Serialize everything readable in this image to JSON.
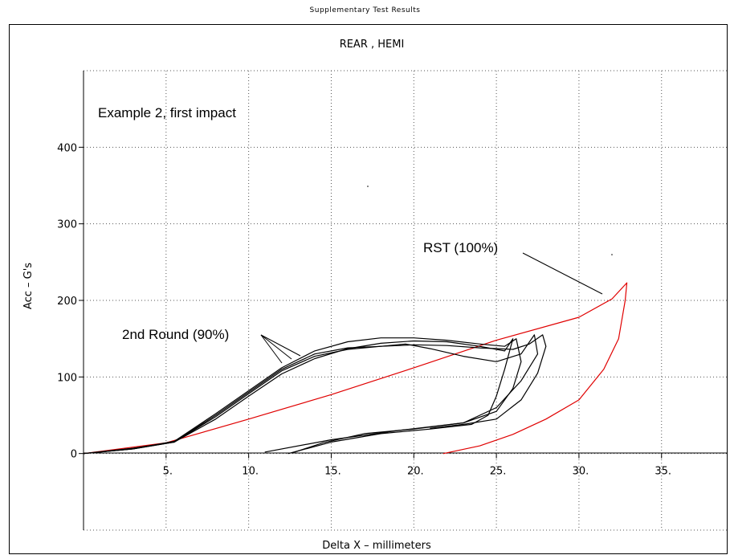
{
  "page": {
    "supertitle": "Supplementary Test Results"
  },
  "chart_data": {
    "type": "line",
    "title": "REAR , HEMI",
    "xlabel": "Delta X – millimeters",
    "ylabel": "Acc – G's",
    "xlim": [
      0,
      39
    ],
    "ylim": [
      -100,
      500
    ],
    "xticks": [
      5,
      10,
      15,
      20,
      25,
      30,
      35
    ],
    "xtick_labels": [
      "5.",
      "10.",
      "15.",
      "20.",
      "25.",
      "30.",
      "35."
    ],
    "yticks": [
      0,
      100,
      200,
      300,
      400
    ],
    "ytick_labels": [
      "0",
      "100",
      "200",
      "300",
      "400"
    ],
    "grid": true,
    "annotations": [
      {
        "text": "Example 2, first impact"
      },
      {
        "text": "RST (100%)"
      },
      {
        "text": "2nd Round (90%)"
      }
    ],
    "series": [
      {
        "color": "#e00000",
        "points": [
          [
            0,
            0
          ],
          [
            5,
            14
          ],
          [
            10,
            45
          ],
          [
            15,
            77
          ],
          [
            20,
            112
          ],
          [
            25,
            148
          ],
          [
            30,
            178
          ],
          [
            32,
            202
          ],
          [
            32.9,
            223
          ],
          [
            32.8,
            200
          ],
          [
            32.4,
            150
          ],
          [
            31.5,
            110
          ],
          [
            30,
            70
          ],
          [
            28,
            45
          ],
          [
            26,
            25
          ],
          [
            24,
            10
          ],
          [
            21.8,
            0
          ]
        ]
      },
      {
        "color": "#000000",
        "points": [
          [
            0,
            0
          ],
          [
            3,
            7
          ],
          [
            5.5,
            15
          ],
          [
            8,
            45
          ],
          [
            10,
            75
          ],
          [
            12,
            104
          ],
          [
            14,
            124
          ],
          [
            16,
            137
          ],
          [
            18,
            144
          ],
          [
            20,
            147
          ],
          [
            22,
            146
          ],
          [
            24,
            140
          ],
          [
            25.5,
            134
          ],
          [
            26,
            150
          ],
          [
            25.5,
            110
          ],
          [
            25,
            75
          ],
          [
            24.5,
            50
          ],
          [
            23.5,
            38
          ],
          [
            21,
            32
          ],
          [
            18,
            26
          ],
          [
            15,
            15
          ],
          [
            12.4,
            0
          ]
        ]
      },
      {
        "color": "#000000",
        "points": [
          [
            0,
            0
          ],
          [
            3,
            6
          ],
          [
            5.5,
            16
          ],
          [
            8,
            52
          ],
          [
            10,
            82
          ],
          [
            12,
            112
          ],
          [
            14,
            134
          ],
          [
            16,
            146
          ],
          [
            18,
            151
          ],
          [
            20,
            151
          ],
          [
            22,
            148
          ],
          [
            24,
            143
          ],
          [
            25.5,
            140
          ],
          [
            26.2,
            150
          ],
          [
            26.5,
            120
          ],
          [
            26,
            85
          ],
          [
            25,
            55
          ],
          [
            23,
            40
          ],
          [
            19,
            30
          ],
          [
            15,
            18
          ],
          [
            11,
            2
          ]
        ]
      },
      {
        "color": "#000000",
        "points": [
          [
            0,
            0
          ],
          [
            3,
            6
          ],
          [
            5.5,
            15
          ],
          [
            8,
            48
          ],
          [
            10,
            78
          ],
          [
            12,
            108
          ],
          [
            14,
            127
          ],
          [
            16,
            136
          ],
          [
            18,
            140
          ],
          [
            19.5,
            143
          ],
          [
            21,
            137
          ],
          [
            23,
            127
          ],
          [
            25,
            120
          ],
          [
            26.5,
            130
          ],
          [
            27.3,
            155
          ],
          [
            27.5,
            130
          ],
          [
            26.5,
            95
          ],
          [
            25,
            60
          ],
          [
            23,
            40
          ],
          [
            20,
            32
          ],
          [
            17,
            26
          ],
          [
            14.5,
            14
          ],
          [
            12.8,
            2
          ]
        ]
      },
      {
        "color": "#000000",
        "points": [
          [
            0,
            0
          ],
          [
            3,
            6
          ],
          [
            5.5,
            15
          ],
          [
            8,
            50
          ],
          [
            10,
            80
          ],
          [
            12,
            110
          ],
          [
            14,
            130
          ],
          [
            16,
            138
          ],
          [
            18,
            140
          ],
          [
            20,
            142
          ],
          [
            22,
            141
          ],
          [
            24,
            138
          ],
          [
            26,
            136
          ],
          [
            27,
            143
          ],
          [
            27.8,
            155
          ],
          [
            28,
            140
          ],
          [
            27.5,
            105
          ],
          [
            26.5,
            70
          ],
          [
            25,
            45
          ],
          [
            23,
            38
          ],
          [
            21,
            33
          ]
        ]
      }
    ]
  }
}
